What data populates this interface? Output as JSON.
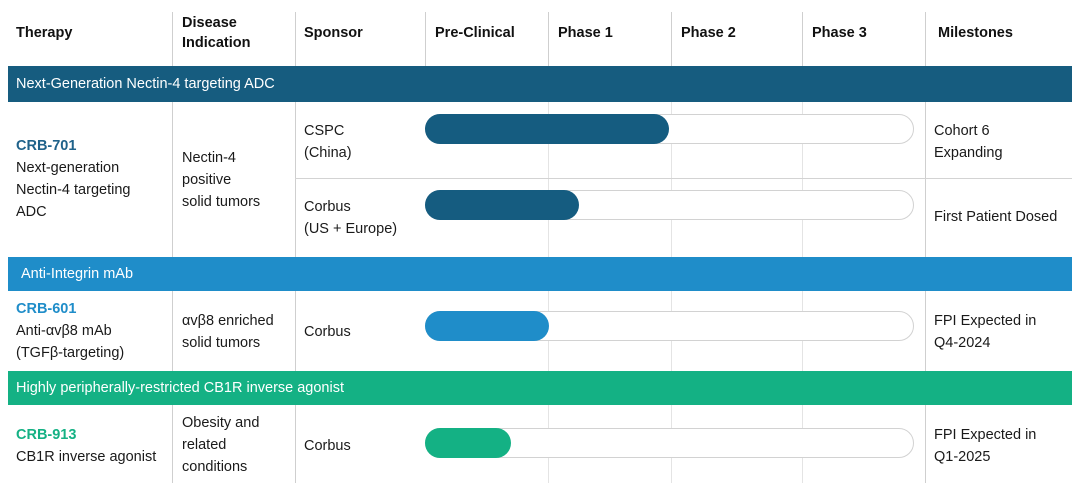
{
  "header": {
    "therapy": "Therapy",
    "disease_line1": "Disease",
    "disease_line2": "Indication",
    "sponsor": "Sponsor",
    "preclinical": "Pre-Clinical",
    "phase1": "Phase 1",
    "phase2": "Phase 2",
    "phase3": "Phase 3",
    "milestones": "Milestones"
  },
  "sections": {
    "nectin": {
      "title": "Next-Generation Nectin-4 targeting ADC",
      "color": "#165c7f",
      "therapy_code": "CRB-701",
      "therapy_desc": [
        "Next-generation",
        "Nectin-4 targeting",
        "ADC"
      ],
      "indication": [
        "Nectin-4",
        "positive",
        "solid tumors"
      ],
      "rows": [
        {
          "sponsor": [
            "CSPC",
            "(China)"
          ],
          "progress_stage": "Phase 1",
          "milestone": [
            "Cohort 6",
            "Expanding"
          ]
        },
        {
          "sponsor": [
            "Corbus",
            "(US + Europe)"
          ],
          "progress_stage": "Pre-Clinical",
          "milestone": [
            "First Patient Dosed"
          ]
        }
      ]
    },
    "integrin": {
      "title": "Anti-Integrin mAb",
      "color": "#1f8dc9",
      "therapy_code": "CRB-601",
      "therapy_desc": [
        "Anti-αvβ8 mAb",
        "(TGFβ-targeting)"
      ],
      "indication": [
        "αvβ8 enriched",
        "solid tumors"
      ],
      "rows": [
        {
          "sponsor": [
            "Corbus"
          ],
          "progress_stage": "Pre-Clinical",
          "milestone": [
            "FPI Expected in",
            "Q4-2024"
          ]
        }
      ]
    },
    "cb1r": {
      "title": "Highly peripherally-restricted CB1R inverse agonist",
      "color": "#14b184",
      "therapy_code": "CRB-913",
      "therapy_desc": [
        "CB1R inverse agonist"
      ],
      "indication": [
        "Obesity and",
        "related",
        "conditions"
      ],
      "rows": [
        {
          "sponsor": [
            "Corbus"
          ],
          "progress_stage": "Pre-Clinical",
          "milestone": [
            "FPI Expected in",
            "Q1-2025"
          ]
        }
      ]
    }
  }
}
